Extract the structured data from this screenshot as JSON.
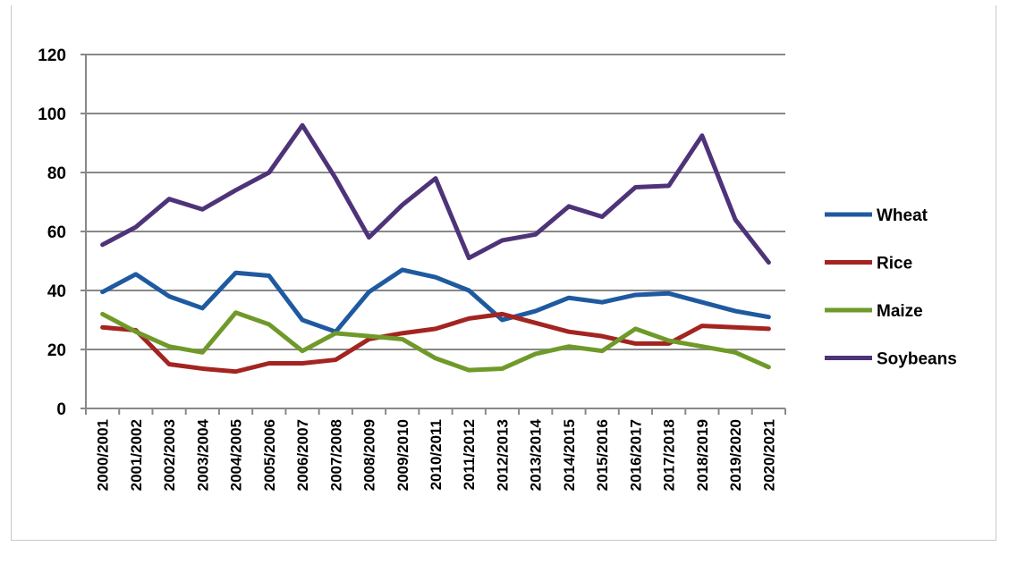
{
  "chart_data": {
    "type": "line",
    "title": "",
    "xlabel": "",
    "ylabel": "",
    "ylim": [
      0,
      120
    ],
    "yticks": [
      0,
      20,
      40,
      60,
      80,
      100,
      120
    ],
    "grid": true,
    "legend": "right",
    "categories": [
      "2000/2001",
      "2001/2002",
      "2002/2003",
      "2003/2004",
      "2004/2005",
      "2005/2006",
      "2006/2007",
      "2007/2008",
      "2008/2009",
      "2009/2010",
      "2010/2011",
      "2011/2012",
      "2012/2013",
      "2013/2014",
      "2014/2015",
      "2015/2016",
      "2016/2017",
      "2017/2018",
      "2018/2019",
      "2019/2020",
      "2020/2021"
    ],
    "series": [
      {
        "name": "Wheat",
        "color": "#1f5aa0",
        "values": [
          39.5,
          45.5,
          38,
          34,
          46,
          45,
          30,
          26,
          39.5,
          47,
          44.5,
          40,
          30,
          33,
          37.5,
          36,
          38.5,
          39,
          36,
          33,
          31
        ]
      },
      {
        "name": "Rice",
        "color": "#a32420",
        "values": [
          27.5,
          26.5,
          15,
          13.5,
          12.5,
          15.3,
          15.3,
          16.5,
          23.5,
          25.5,
          27,
          30.5,
          32,
          29,
          26,
          24.5,
          22,
          22,
          28,
          27.5,
          27
        ]
      },
      {
        "name": "Maize",
        "color": "#6f9a2a",
        "values": [
          32,
          26,
          21,
          19,
          32.5,
          28.5,
          19.5,
          25.5,
          24.5,
          23.5,
          17,
          13,
          13.5,
          18.5,
          21,
          19.5,
          27,
          23,
          21,
          19,
          14
        ]
      },
      {
        "name": "Soybeans",
        "color": "#4e3379",
        "values": [
          55.5,
          61.5,
          71,
          67.5,
          74,
          80,
          96,
          78,
          58,
          69,
          78,
          51,
          57,
          59,
          68.5,
          65,
          75,
          75.5,
          92.5,
          64,
          49.5
        ]
      }
    ]
  }
}
